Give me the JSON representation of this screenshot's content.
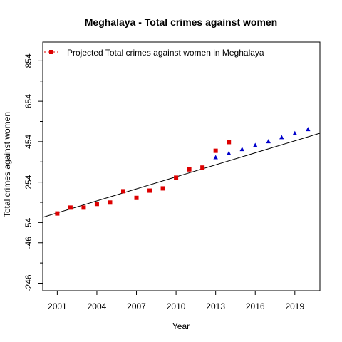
{
  "chart_data": {
    "type": "scatter",
    "title": "Meghalaya  -  Total crimes against women",
    "xlabel": "Year",
    "ylabel": "Total crimes against women",
    "xlim": [
      1999.9,
      2020.9
    ],
    "ylim": [
      -283,
      947
    ],
    "x_ticks": [
      2001,
      2004,
      2007,
      2010,
      2013,
      2016,
      2019
    ],
    "y_ticks_major": [
      -246,
      -46,
      54,
      254,
      454,
      654,
      854
    ],
    "y_ticks_minor": [
      -146,
      154,
      354,
      554,
      754
    ],
    "legend": {
      "label": "Projected  Total crimes against women  in  Meghalaya",
      "position": "top-left"
    },
    "trend_line": {
      "x": [
        1999.9,
        2020.9
      ],
      "y": [
        80,
        496
      ]
    },
    "series": [
      {
        "marker": "square",
        "color": "#dd0000",
        "points": [
          {
            "x": 2001,
            "y": 99
          },
          {
            "x": 2002,
            "y": 128
          },
          {
            "x": 2003,
            "y": 128
          },
          {
            "x": 2004,
            "y": 146
          },
          {
            "x": 2005,
            "y": 153
          },
          {
            "x": 2006,
            "y": 209
          },
          {
            "x": 2007,
            "y": 176
          },
          {
            "x": 2008,
            "y": 212
          },
          {
            "x": 2009,
            "y": 223
          },
          {
            "x": 2010,
            "y": 276
          },
          {
            "x": 2011,
            "y": 317
          },
          {
            "x": 2012,
            "y": 326
          },
          {
            "x": 2013,
            "y": 409
          },
          {
            "x": 2014,
            "y": 452
          }
        ]
      },
      {
        "marker": "triangle",
        "color": "#0000cc",
        "points": [
          {
            "x": 2013,
            "y": 376
          },
          {
            "x": 2014,
            "y": 396
          },
          {
            "x": 2015,
            "y": 416
          },
          {
            "x": 2016,
            "y": 436
          },
          {
            "x": 2017,
            "y": 455
          },
          {
            "x": 2018,
            "y": 475
          },
          {
            "x": 2019,
            "y": 495
          },
          {
            "x": 2020,
            "y": 515
          }
        ]
      }
    ]
  }
}
